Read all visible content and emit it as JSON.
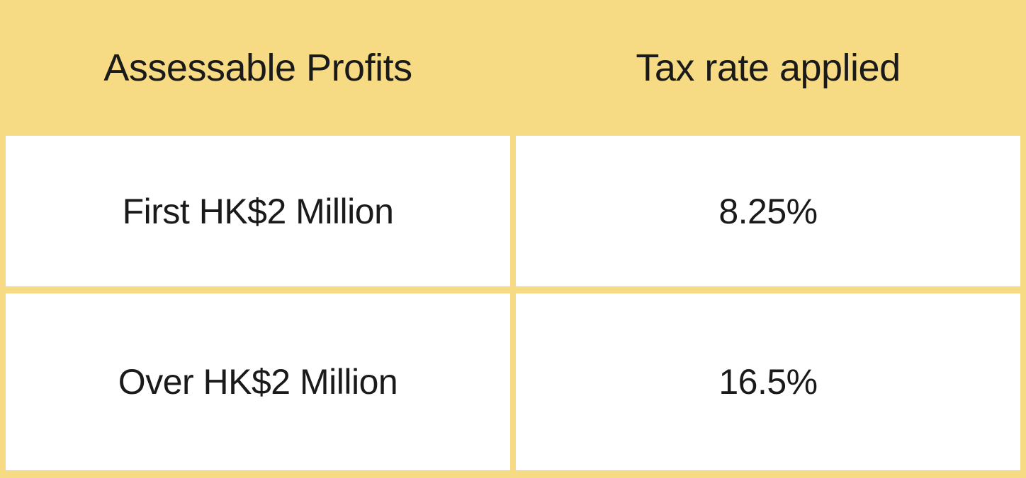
{
  "table": {
    "columns": [
      {
        "label": "Assessable Profits"
      },
      {
        "label": "Tax rate applied"
      }
    ],
    "rows": [
      {
        "profits": "First HK$2 Million",
        "rate": "8.25%"
      },
      {
        "profits": "Over HK$2 Million",
        "rate": "16.5%"
      }
    ]
  },
  "colors": {
    "frame_yellow": "#F7DB84",
    "cell_white": "#FFFFFF",
    "text_dark": "#1A1A1A"
  },
  "chart_data": {
    "type": "table",
    "title": "",
    "columns": [
      "Assessable Profits",
      "Tax rate applied"
    ],
    "rows": [
      [
        "First HK$2 Million",
        "8.25%"
      ],
      [
        "Over HK$2 Million",
        "16.5%"
      ]
    ],
    "values_numeric": {
      "first_hk$2_million_rate_percent": 8.25,
      "over_hk$2_million_rate_percent": 16.5
    },
    "layout_hints": {
      "header_background": "#F7DB84",
      "cell_background": "#FFFFFF",
      "grid": "yellow dividers between cells",
      "text_alignment": "center"
    }
  }
}
